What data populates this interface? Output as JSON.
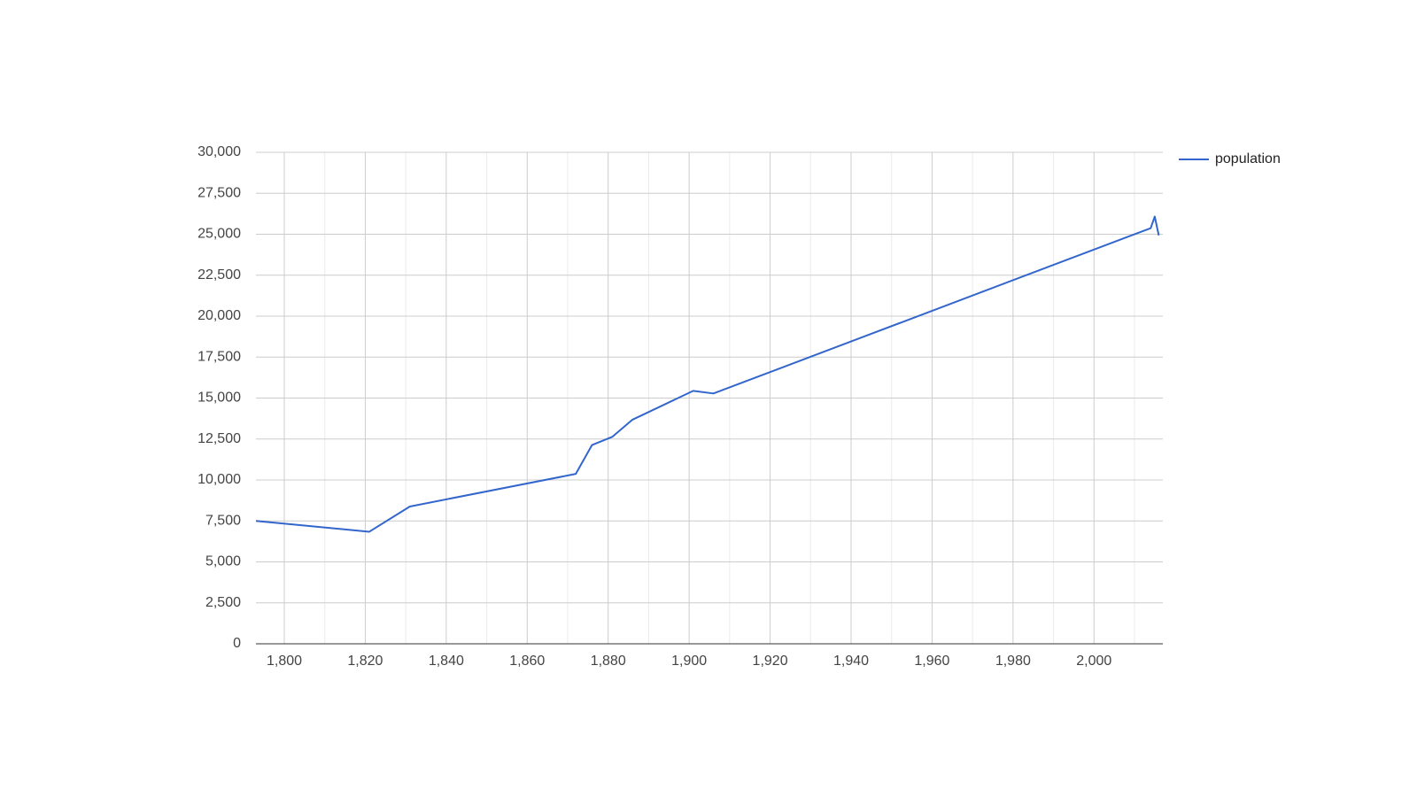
{
  "chart_data": {
    "type": "line",
    "x": [
      1793,
      1821,
      1831,
      1872,
      1876,
      1881,
      1886,
      1901,
      1906,
      2011,
      2014,
      2015,
      2016
    ],
    "series": [
      {
        "name": "population",
        "color": "#3366cc",
        "values": [
          7500,
          6840,
          8380,
          10370,
          12130,
          12630,
          13680,
          15440,
          15280,
          25090,
          25370,
          26080,
          24930
        ]
      }
    ],
    "xlim": [
      1793,
      2017
    ],
    "ylim": [
      0,
      30000
    ],
    "xticks": [
      {
        "value": 1800,
        "label": "1,800"
      },
      {
        "value": 1820,
        "label": "1,820"
      },
      {
        "value": 1840,
        "label": "1,840"
      },
      {
        "value": 1860,
        "label": "1,860"
      },
      {
        "value": 1880,
        "label": "1,880"
      },
      {
        "value": 1900,
        "label": "1,900"
      },
      {
        "value": 1920,
        "label": "1,920"
      },
      {
        "value": 1940,
        "label": "1,940"
      },
      {
        "value": 1960,
        "label": "1,960"
      },
      {
        "value": 1980,
        "label": "1,980"
      },
      {
        "value": 2000,
        "label": "2,000"
      }
    ],
    "yticks": [
      0,
      {
        "value": 2500,
        "label": "2,500"
      },
      {
        "value": 5000,
        "label": "5,000"
      },
      {
        "value": 7500,
        "label": "7,500"
      },
      {
        "value": 10000,
        "label": "10,000"
      },
      {
        "value": 12500,
        "label": "12,500"
      },
      {
        "value": 15000,
        "label": "15,000"
      },
      {
        "value": 17500,
        "label": "17,500"
      },
      {
        "value": 20000,
        "label": "20,000"
      },
      {
        "value": 22500,
        "label": "22,500"
      },
      {
        "value": 25000,
        "label": "25,000"
      },
      {
        "value": 27500,
        "label": "27,500"
      },
      {
        "value": 30000,
        "label": "30,000"
      }
    ],
    "grid": true,
    "legend": "right"
  }
}
